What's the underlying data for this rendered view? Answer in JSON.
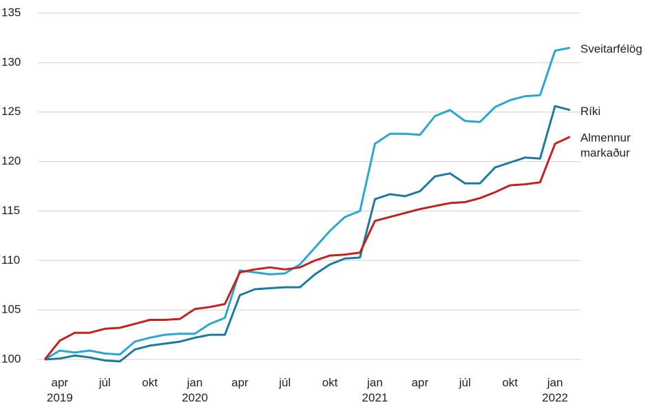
{
  "chart_data": {
    "type": "line",
    "categories": [
      null,
      "apr\n2019",
      null,
      null,
      "júl",
      null,
      null,
      "okt",
      null,
      null,
      "jan\n2020",
      null,
      null,
      "apr",
      null,
      null,
      "júl",
      null,
      null,
      "okt",
      null,
      null,
      "jan\n2021",
      null,
      null,
      "apr",
      null,
      null,
      "júl",
      null,
      null,
      "okt",
      null,
      null,
      "jan\n2022",
      null
    ],
    "series": [
      {
        "name": "Sveitarfélög",
        "color": "#2aa6d5",
        "values": [
          100,
          100.9,
          100.7,
          100.9,
          100.6,
          100.5,
          101.8,
          102.2,
          102.5,
          102.6,
          102.6,
          103.6,
          104.2,
          109.0,
          108.8,
          108.6,
          108.7,
          109.6,
          111.3,
          113.0,
          114.4,
          115.0,
          121.8,
          122.8,
          122.8,
          122.7,
          124.6,
          125.2,
          124.1,
          124.0,
          125.5,
          126.2,
          126.6,
          126.7,
          131.2,
          131.5
        ]
      },
      {
        "name": "Ríki",
        "color": "#1b7a9e",
        "values": [
          100,
          100.1,
          100.4,
          100.2,
          99.9,
          99.8,
          101.0,
          101.4,
          101.6,
          101.8,
          102.2,
          102.5,
          102.5,
          106.5,
          107.1,
          107.2,
          107.3,
          107.3,
          108.6,
          109.6,
          110.2,
          110.3,
          116.2,
          116.7,
          116.5,
          117.0,
          118.5,
          118.8,
          117.8,
          117.8,
          119.4,
          119.9,
          120.4,
          120.3,
          125.6,
          125.2
        ]
      },
      {
        "name": "Almennur markaður",
        "color": "#c4201f",
        "values": [
          100,
          101.9,
          102.7,
          102.7,
          103.1,
          103.2,
          103.6,
          104.0,
          104.0,
          104.1,
          105.1,
          105.3,
          105.6,
          108.8,
          109.1,
          109.3,
          109.1,
          109.3,
          110.0,
          110.5,
          110.6,
          110.8,
          114.0,
          114.4,
          114.8,
          115.2,
          115.5,
          115.8,
          115.9,
          116.3,
          116.9,
          117.6,
          117.7,
          117.9,
          121.8,
          122.5
        ]
      }
    ],
    "ylim": [
      100,
      135
    ],
    "yticks": [
      100,
      105,
      110,
      115,
      120,
      125,
      130,
      135
    ],
    "grid": true
  }
}
